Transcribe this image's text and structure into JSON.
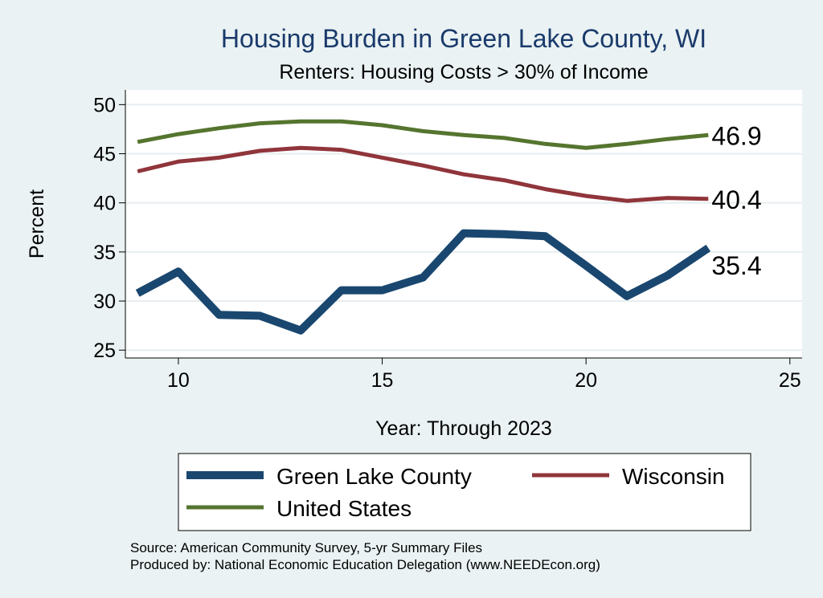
{
  "chart_data": {
    "type": "line",
    "title": "Housing Burden in Green Lake County, WI",
    "subtitle": "Renters: Housing Costs > 30% of Income",
    "xlabel": "Year: Through 2023",
    "ylabel": "Percent",
    "xlim": [
      8.7,
      25.3
    ],
    "ylim": [
      24.2,
      51.5
    ],
    "xticks": [
      10,
      15,
      20,
      25
    ],
    "yticks": [
      25,
      30,
      35,
      40,
      45,
      50
    ],
    "grid": true,
    "legend_position": "bottom",
    "x": [
      9,
      10,
      11,
      12,
      13,
      14,
      15,
      16,
      17,
      18,
      19,
      20,
      21,
      22,
      23
    ],
    "series": [
      {
        "name": "Green Lake County",
        "color": "#1a476f",
        "line_weight": "thick",
        "values": [
          30.8,
          33.0,
          28.6,
          28.5,
          27.0,
          31.1,
          31.1,
          32.4,
          36.9,
          36.8,
          36.6,
          33.6,
          30.5,
          32.6,
          35.4
        ],
        "end_label": "35.4"
      },
      {
        "name": "Wisconsin",
        "color": "#90353b",
        "line_weight": "medium",
        "values": [
          43.2,
          44.2,
          44.6,
          45.3,
          45.6,
          45.4,
          44.6,
          43.8,
          42.9,
          42.3,
          41.4,
          40.7,
          40.2,
          40.5,
          40.4
        ],
        "end_label": "40.4"
      },
      {
        "name": "United States",
        "color": "#55752f",
        "line_weight": "medium",
        "values": [
          46.2,
          47.0,
          47.6,
          48.1,
          48.3,
          48.3,
          47.9,
          47.3,
          46.9,
          46.6,
          46.0,
          45.6,
          46.0,
          46.5,
          46.9
        ],
        "end_label": "46.9"
      }
    ]
  },
  "notes": {
    "source": "Source: American Community Survey, 5-yr Summary Files",
    "producer": "Produced by: National Economic Education Delegation (www.NEEDEcon.org)"
  }
}
